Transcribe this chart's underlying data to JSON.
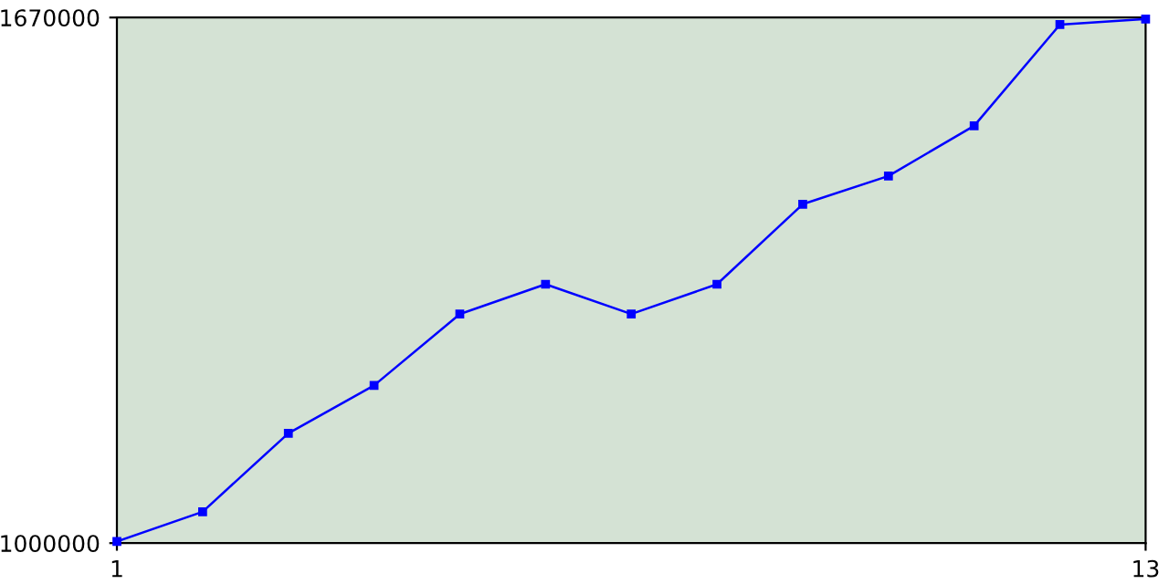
{
  "chart_data": {
    "type": "line",
    "x": [
      1,
      2,
      3,
      4,
      5,
      6,
      7,
      8,
      9,
      10,
      11,
      12,
      13
    ],
    "series": [
      {
        "color": "#0000ff",
        "values": [
          1002000,
          1040000,
          1140000,
          1201000,
          1292000,
          1330000,
          1292000,
          1330000,
          1432000,
          1468000,
          1532000,
          1661000,
          1668000
        ]
      }
    ],
    "xlim": [
      1,
      13
    ],
    "ylim": [
      1000000,
      1670000
    ],
    "xticks": [
      1,
      13
    ],
    "yticks": [
      1000000,
      1670000
    ],
    "marker": "square",
    "line_style": "solid",
    "grid": false,
    "legend": false
  }
}
